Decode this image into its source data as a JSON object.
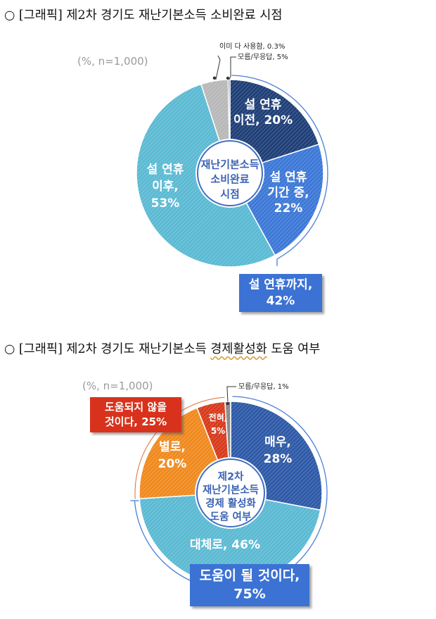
{
  "headings": [
    "○ [그래픽] 제2차 경기도 재난기본소득 소비완료 시점",
    "○ [그래픽] 제2차 경기도 재난기본소득 경제활성화 도움 여부"
  ],
  "chart_data": [
    {
      "type": "pie",
      "note": "(%, n=1,000)",
      "center_label": [
        "재난기본소득",
        "소비완료",
        "시점"
      ],
      "slices": [
        {
          "label": [
            "설 연휴",
            "이전, 20%"
          ],
          "value": 20,
          "color": "#1f3f77"
        },
        {
          "label": [
            "설 연휴",
            "기간 중,",
            "22%"
          ],
          "value": 22,
          "color": "#3d78d6"
        },
        {
          "label": [
            "설 연휴",
            "이후,",
            "53%"
          ],
          "value": 53,
          "color": "#5bbad3"
        },
        {
          "label": [
            "모름/무응답, 5%"
          ],
          "value": 4.7,
          "color": "#b8b8b8"
        },
        {
          "label": [
            "이미 다 사용함, 0.3%"
          ],
          "value": 0.3,
          "color": "#666666"
        }
      ],
      "callout": [
        "설 연휴까지,",
        "42%"
      ],
      "callout_color": "#3a72d4"
    },
    {
      "type": "pie",
      "note": "(%, n=1,000)",
      "center_label": [
        "제2차",
        "재난기본소득",
        "경제 활성화",
        "도움 여부"
      ],
      "slices": [
        {
          "label": [
            "매우,",
            "28%"
          ],
          "value": 28,
          "color": "#2e5aa8"
        },
        {
          "label": [
            "대체로, 46%"
          ],
          "value": 46,
          "color": "#5bbad3"
        },
        {
          "label": [
            "별로,",
            "20%"
          ],
          "value": 20,
          "color": "#f08a1e"
        },
        {
          "label": [
            "전혀,",
            "5%"
          ],
          "value": 5,
          "color": "#d83a1c"
        },
        {
          "label": [
            "모름/무응답, 1%"
          ],
          "value": 1,
          "color": "#888888"
        }
      ],
      "callout_negative": [
        "도움되지 않을",
        "것이다, 25%"
      ],
      "callout_negative_color": "#d8301a",
      "callout": [
        "도움이 될 것이다,",
        "75%"
      ],
      "callout_color": "#3a72d4"
    }
  ]
}
